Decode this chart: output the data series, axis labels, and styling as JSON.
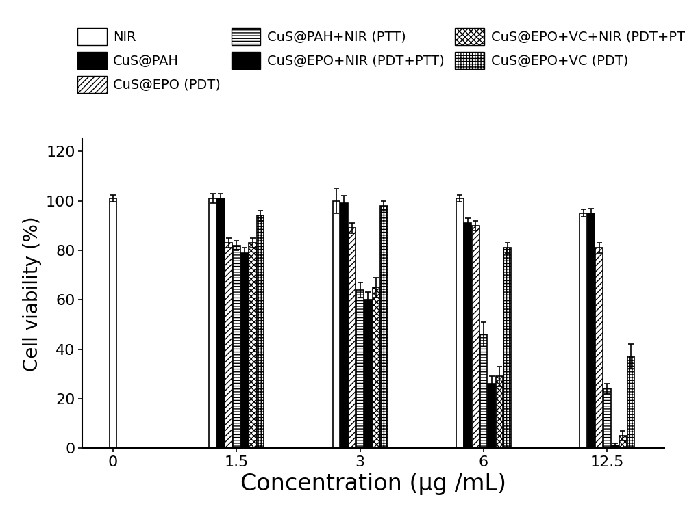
{
  "concentrations": [
    "0",
    "1.5",
    "3",
    "6",
    "12.5"
  ],
  "series": [
    {
      "label": "NIR",
      "facecolor": "white",
      "edgecolor": "black",
      "hatch": "",
      "values": [
        101,
        101,
        100,
        101,
        95
      ],
      "errors": [
        1.5,
        2.0,
        5.0,
        1.5,
        1.5
      ],
      "show_at_zero": true
    },
    {
      "label": "CuS@PAH",
      "facecolor": "black",
      "edgecolor": "black",
      "hatch": "",
      "values": [
        0,
        101,
        99,
        91,
        95
      ],
      "errors": [
        0,
        2,
        3,
        2,
        2
      ],
      "show_at_zero": false
    },
    {
      "label": "CuS@EPO (PDT)",
      "facecolor": "white",
      "edgecolor": "black",
      "hatch": "////",
      "values": [
        0,
        83,
        89,
        90,
        81
      ],
      "errors": [
        0,
        2,
        2,
        2,
        2
      ],
      "show_at_zero": false
    },
    {
      "label": "CuS@PAH+NIR (PTT)",
      "facecolor": "white",
      "edgecolor": "black",
      "hatch": "----",
      "values": [
        0,
        82,
        64,
        46,
        24
      ],
      "errors": [
        0,
        2,
        3,
        5,
        2
      ],
      "show_at_zero": false
    },
    {
      "label": "CuS@EPO+NIR (PDT+PTT)",
      "facecolor": "black",
      "edgecolor": "black",
      "hatch": "\\\\\\\\",
      "values": [
        0,
        79,
        60,
        26,
        1
      ],
      "errors": [
        0,
        2,
        3,
        3,
        1
      ],
      "show_at_zero": false
    },
    {
      "label": "CuS@EPO+VC+NIR (PDT+PTT)",
      "facecolor": "white",
      "edgecolor": "black",
      "hatch": "xxxx",
      "values": [
        0,
        83,
        65,
        29,
        5
      ],
      "errors": [
        0,
        2,
        4,
        4,
        2
      ],
      "show_at_zero": false
    },
    {
      "label": "CuS@EPO+VC (PDT)",
      "facecolor": "white",
      "edgecolor": "black",
      "hatch": "++++",
      "values": [
        0,
        94,
        98,
        81,
        37
      ],
      "errors": [
        0,
        2,
        2,
        2,
        5
      ],
      "show_at_zero": false
    }
  ],
  "ylabel": "Cell viability (%)",
  "xlabel": "Concentration (μg /mL)",
  "ylim": [
    0,
    125
  ],
  "yticks": [
    0,
    20,
    40,
    60,
    80,
    100,
    120
  ],
  "bar_width": 0.09,
  "axis_fontsize": 20,
  "xlabel_fontsize": 24,
  "tick_fontsize": 16,
  "legend_fontsize": 14
}
